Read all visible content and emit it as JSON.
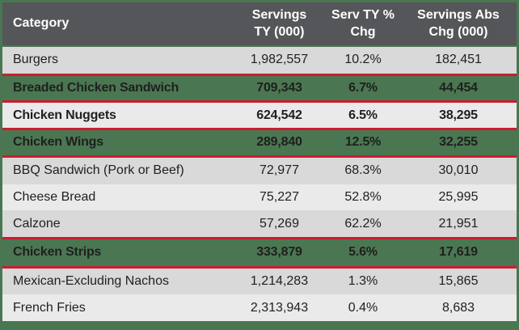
{
  "colors": {
    "header_bg": "#55565a",
    "header_text": "#ffffff",
    "highlight_green": "#4a7751",
    "outer_border_green": "#4a7751",
    "red_box_border": "#cb1c30",
    "row_shade_dark": "#d9d9d9",
    "row_shade_light": "#eaeaea",
    "body_text": "#1f1f1f"
  },
  "table": {
    "columns": [
      {
        "line1": "Category",
        "line2": ""
      },
      {
        "line1": "Servings",
        "line2": "TY (000)"
      },
      {
        "line1": "Serv TY %",
        "line2": "Chg"
      },
      {
        "line1": "Servings Abs",
        "line2": "Chg (000)"
      }
    ],
    "rows": [
      {
        "category": "Burgers",
        "servings_ty": "1,982,557",
        "pct_chg": "10.2%",
        "abs_chg": "182,451"
      },
      {
        "category": "Breaded Chicken Sandwich",
        "servings_ty": "709,343",
        "pct_chg": "6.7%",
        "abs_chg": "44,454"
      },
      {
        "category": "Chicken Nuggets",
        "servings_ty": "624,542",
        "pct_chg": "6.5%",
        "abs_chg": "38,295"
      },
      {
        "category": "Chicken Wings",
        "servings_ty": "289,840",
        "pct_chg": "12.5%",
        "abs_chg": "32,255"
      },
      {
        "category": "BBQ Sandwich (Pork or Beef)",
        "servings_ty": "72,977",
        "pct_chg": "68.3%",
        "abs_chg": "30,010"
      },
      {
        "category": "Cheese Bread",
        "servings_ty": "75,227",
        "pct_chg": "52.8%",
        "abs_chg": "25,995"
      },
      {
        "category": "Calzone",
        "servings_ty": "57,269",
        "pct_chg": "62.2%",
        "abs_chg": "21,951"
      },
      {
        "category": "Chicken Strips",
        "servings_ty": "333,879",
        "pct_chg": "5.6%",
        "abs_chg": "17,619"
      },
      {
        "category": "Mexican-Excluding Nachos",
        "servings_ty": "1,214,283",
        "pct_chg": "1.3%",
        "abs_chg": "15,865"
      },
      {
        "category": "French Fries",
        "servings_ty": "2,313,943",
        "pct_chg": "0.4%",
        "abs_chg": "8,683"
      }
    ]
  },
  "chart_data": {
    "type": "table",
    "title": "",
    "columns": [
      "Category",
      "Servings TY (000)",
      "Serv TY % Chg",
      "Servings Abs Chg (000)"
    ],
    "rows": [
      [
        "Burgers",
        1982557,
        10.2,
        182451
      ],
      [
        "Breaded Chicken Sandwich",
        709343,
        6.7,
        44454
      ],
      [
        "Chicken Nuggets",
        624542,
        6.5,
        38295
      ],
      [
        "Chicken Wings",
        289840,
        12.5,
        32255
      ],
      [
        "BBQ Sandwich (Pork or Beef)",
        72977,
        68.3,
        30010
      ],
      [
        "Cheese Bread",
        75227,
        52.8,
        25995
      ],
      [
        "Calzone",
        57269,
        62.2,
        21951
      ],
      [
        "Chicken Strips",
        333879,
        5.6,
        17619
      ],
      [
        "Mexican-Excluding Nachos",
        1214283,
        1.3,
        15865
      ],
      [
        "French Fries",
        2313943,
        0.4,
        8683
      ]
    ],
    "highlighted_rows": [
      "Breaded Chicken Sandwich",
      "Chicken Nuggets",
      "Chicken Wings",
      "Chicken Strips"
    ],
    "highlight_style": "red outline box, green fill on Breaded Chicken Sandwich / Chicken Wings / Chicken Strips, bold text"
  }
}
